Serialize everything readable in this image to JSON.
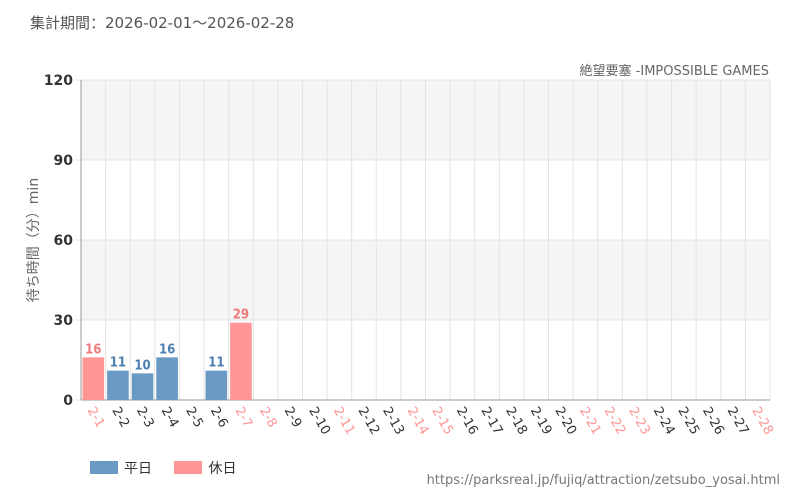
{
  "header": {
    "period": "集計期間：2026-02-01～2026-02-28"
  },
  "footer": {
    "source_url": "https://parksreal.jp/fujiq/attraction/zetsubo_yosai.html"
  },
  "colors": {
    "weekday": "#6a9ac4",
    "holiday": "#ff9595",
    "weekday_label": "#4a7fb0",
    "holiday_label": "#f07878",
    "band": "#f5f5f5",
    "grid": "#e4e4e4"
  },
  "chart_data": {
    "type": "bar",
    "title": "絶望要塞 -IMPOSSIBLE GAMES",
    "ylabel": "待ち時間（分）min",
    "xlabel": "",
    "ylim": [
      0,
      120
    ],
    "yticks": [
      0,
      30,
      60,
      90,
      120
    ],
    "grid": true,
    "legend_position": "bottom-left",
    "series": [
      {
        "name": "平日",
        "color": "#6a9ac4"
      },
      {
        "name": "休日",
        "color": "#ff9595"
      }
    ],
    "categories": [
      "2-1",
      "2-2",
      "2-3",
      "2-4",
      "2-5",
      "2-6",
      "2-7",
      "2-8",
      "2-9",
      "2-10",
      "2-11",
      "2-12",
      "2-13",
      "2-14",
      "2-15",
      "2-16",
      "2-17",
      "2-18",
      "2-19",
      "2-20",
      "2-21",
      "2-22",
      "2-23",
      "2-24",
      "2-25",
      "2-26",
      "2-27",
      "2-28"
    ],
    "day_type": [
      "休日",
      "平日",
      "平日",
      "平日",
      "平日",
      "平日",
      "休日",
      "休日",
      "平日",
      "平日",
      "休日",
      "平日",
      "平日",
      "休日",
      "休日",
      "平日",
      "平日",
      "平日",
      "平日",
      "平日",
      "休日",
      "休日",
      "休日",
      "平日",
      "平日",
      "平日",
      "平日",
      "休日"
    ],
    "values": [
      16,
      11,
      10,
      16,
      null,
      11,
      29,
      null,
      null,
      null,
      null,
      null,
      null,
      null,
      null,
      null,
      null,
      null,
      null,
      null,
      null,
      null,
      null,
      null,
      null,
      null,
      null,
      null
    ]
  }
}
